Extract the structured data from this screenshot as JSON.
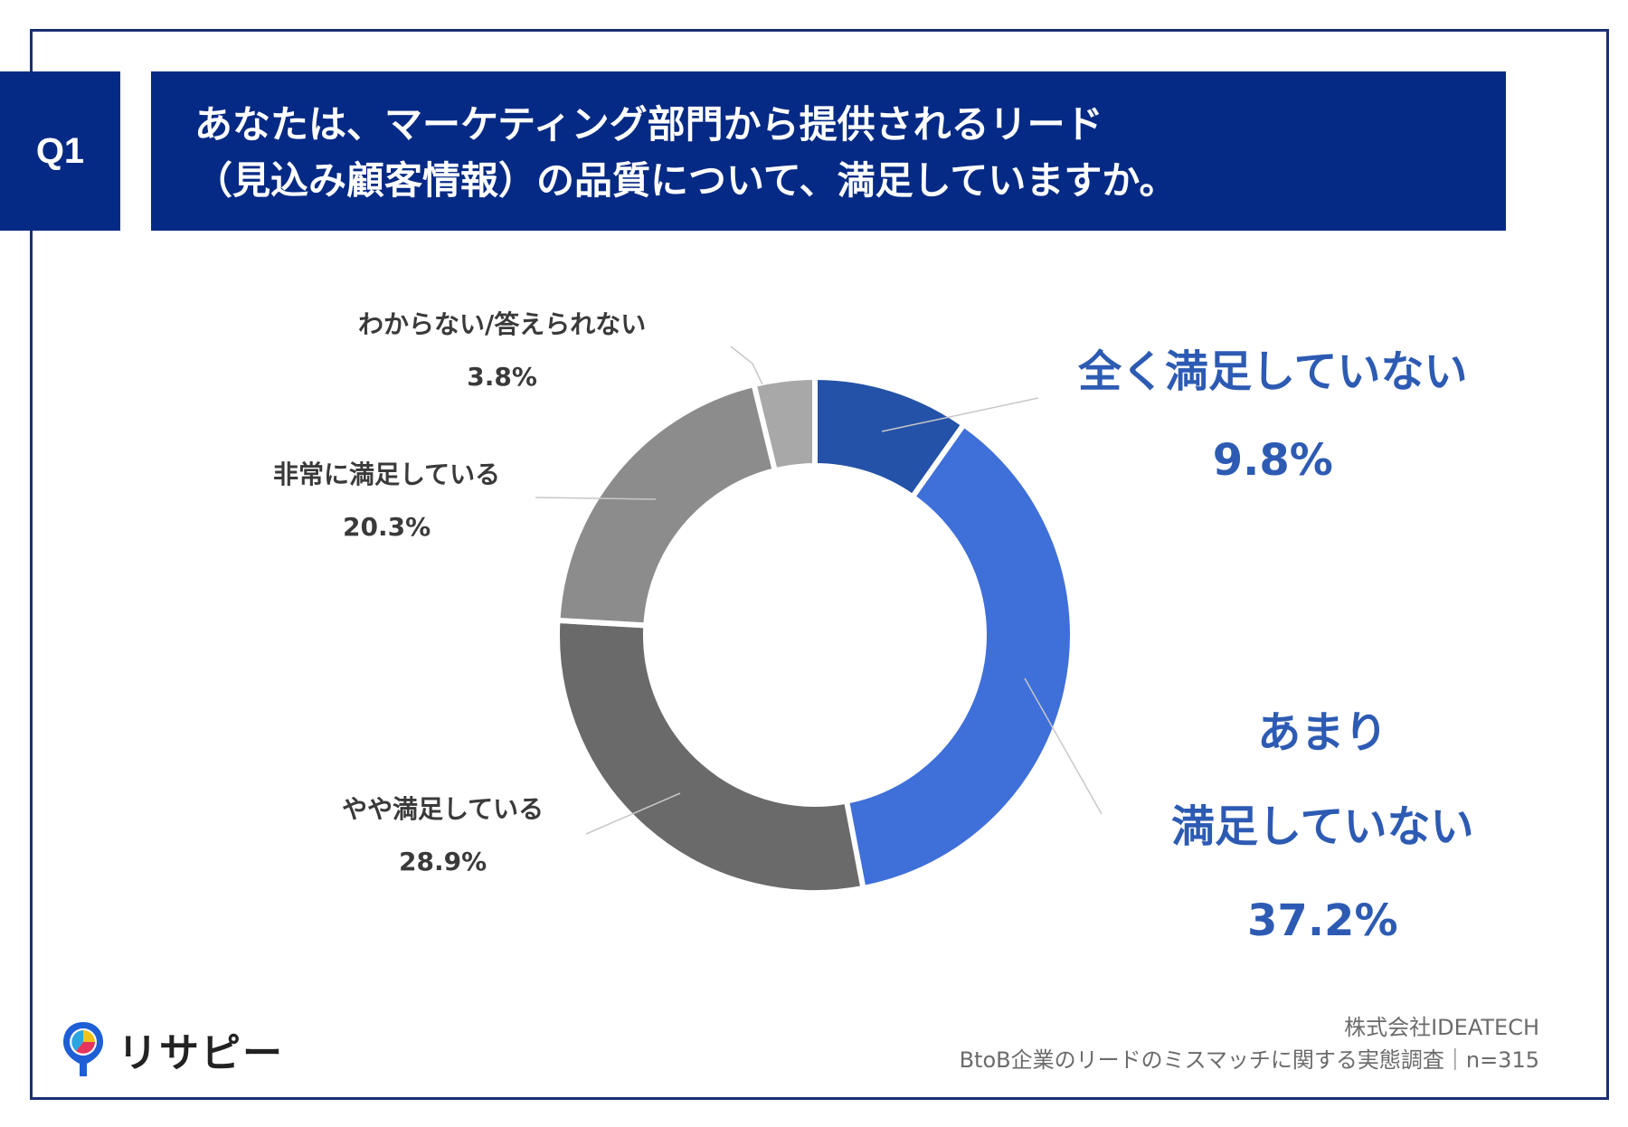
{
  "header": {
    "badge": "Q1",
    "title_line1": "あなたは、マーケティング部門から提供されるリード",
    "title_line2": "（見込み顧客情報）の品質について、満足していますか。"
  },
  "chart_data": {
    "type": "pie",
    "style": "donut",
    "slices": [
      {
        "label": "全く満足していない",
        "value": 9.8,
        "value_text": "9.8%",
        "color": "#2452a8"
      },
      {
        "label_line1": "あまり",
        "label_line2": "満足していない",
        "value": 37.2,
        "value_text": "37.2%",
        "color": "#3f6fd9"
      },
      {
        "label": "やや満足している",
        "value": 28.9,
        "value_text": "28.9%",
        "color": "#6a6a6a"
      },
      {
        "label": "非常に満足している",
        "value": 20.3,
        "value_text": "20.3%",
        "color": "#8c8c8c"
      },
      {
        "label": "わからない/答えられない",
        "value": 3.8,
        "value_text": "3.8%",
        "color": "#a8a8a8"
      }
    ]
  },
  "footer": {
    "company": "株式会社IDEATECH",
    "survey": "BtoB企業のリードのミスマッチに関する実態調査｜n=315"
  },
  "logo": {
    "text": "リサピー",
    "icon": "map-pin-pie-icon"
  }
}
